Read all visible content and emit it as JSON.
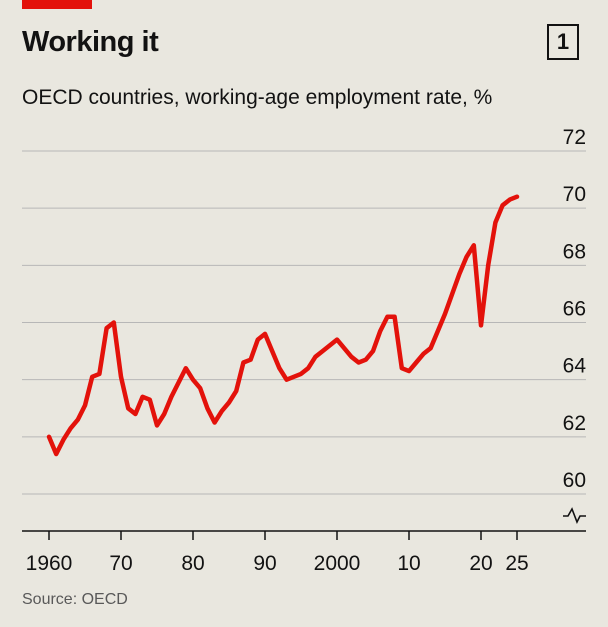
{
  "header": {
    "title": "Working it",
    "badge": "1",
    "subtitle": "OECD countries, working-age employment rate, %"
  },
  "footer": {
    "source": "Source: OECD"
  },
  "colors": {
    "line": "#e3120b",
    "accent": "#e3120b",
    "grid": "#b7b7b7",
    "background": "#e9e7df"
  },
  "chart_data": {
    "type": "line",
    "title": "Working it",
    "subtitle": "OECD countries, working-age employment rate, %",
    "ylim": [
      60,
      72
    ],
    "yticks": [
      60,
      62,
      64,
      66,
      68,
      70,
      72
    ],
    "ytick_labels": [
      "60",
      "62",
      "64",
      "66",
      "68",
      "70",
      "72"
    ],
    "y_axis_break": true,
    "xticks": [
      1960,
      1970,
      1980,
      1990,
      2000,
      2010,
      2020,
      2025
    ],
    "xtick_labels": [
      "1960",
      "70",
      "80",
      "90",
      "2000",
      "10",
      "20",
      "25"
    ],
    "grid": true,
    "series": [
      {
        "x": [
          1960,
          1961,
          1962,
          1963,
          1964,
          1965,
          1966,
          1967,
          1968,
          1969,
          1970,
          1971,
          1972,
          1973,
          1974,
          1975,
          1976,
          1977,
          1978,
          1979,
          1980,
          1981,
          1982,
          1983,
          1984,
          1985,
          1986,
          1987,
          1988,
          1989,
          1990,
          1991,
          1992,
          1993,
          1994,
          1995,
          1996,
          1997,
          1998,
          1999,
          2000,
          2001,
          2002,
          2003,
          2004,
          2005,
          2006,
          2007,
          2008,
          2009,
          2010,
          2011,
          2012,
          2013,
          2014,
          2015,
          2016,
          2017,
          2018,
          2019,
          2020,
          2021,
          2022,
          2023,
          2024,
          2025
        ],
        "values": [
          62.0,
          61.4,
          61.9,
          62.3,
          62.6,
          63.1,
          64.1,
          64.2,
          65.8,
          66.0,
          64.1,
          63.0,
          62.8,
          63.4,
          63.3,
          62.4,
          62.8,
          63.4,
          63.9,
          64.4,
          64.0,
          63.7,
          63.0,
          62.5,
          62.9,
          63.2,
          63.6,
          64.6,
          64.7,
          65.4,
          65.6,
          65.0,
          64.4,
          64.0,
          64.1,
          64.2,
          64.4,
          64.8,
          65.0,
          65.2,
          65.4,
          65.1,
          64.8,
          64.6,
          64.7,
          65.0,
          65.7,
          66.2,
          66.2,
          64.4,
          64.3,
          64.6,
          64.9,
          65.1,
          65.7,
          66.3,
          67.0,
          67.7,
          68.3,
          68.7,
          65.9,
          68.0,
          69.5,
          70.1,
          70.3,
          70.4
        ]
      }
    ]
  }
}
